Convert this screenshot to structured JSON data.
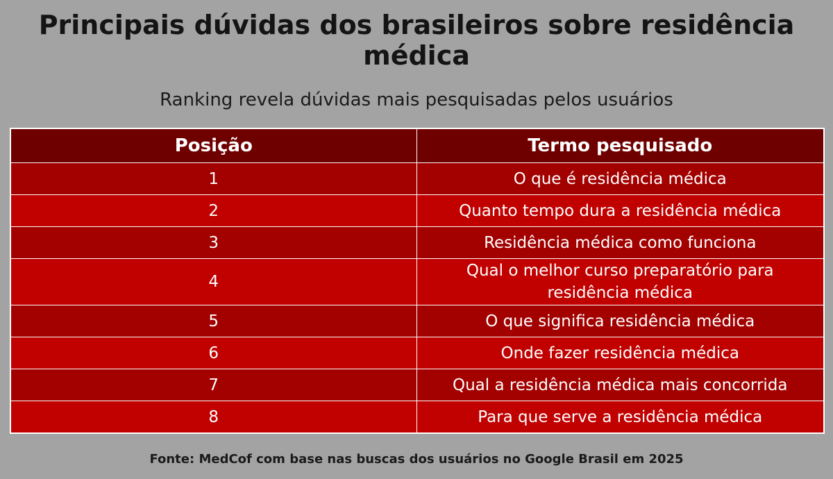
{
  "title": "Principais dúvidas dos brasileiros sobre residência médica",
  "subtitle": "Ranking revela dúvidas mais pesquisadas pelos usuários",
  "table": {
    "headers": [
      "Posição",
      "Termo pesquisado"
    ],
    "rows": [
      {
        "position": "1",
        "term": "O que é residência médica"
      },
      {
        "position": "2",
        "term": "Quanto tempo dura a residência médica"
      },
      {
        "position": "3",
        "term": "Residência médica como funciona"
      },
      {
        "position": "4",
        "term": "Qual o melhor curso preparatório para residência médica"
      },
      {
        "position": "5",
        "term": "O que significa residência médica"
      },
      {
        "position": "6",
        "term": "Onde fazer residência médica"
      },
      {
        "position": "7",
        "term": "Qual a residência médica mais concorrida"
      },
      {
        "position": "8",
        "term": "Para que serve a residência médica"
      }
    ]
  },
  "source": "Fonte: MedCof com base nas buscas dos usuários no Google Brasil em 2025",
  "colors": {
    "background": "#a3a3a3",
    "header": "#6f0000",
    "row_dark": "#a30000",
    "row_light": "#c10000",
    "text_light": "#ffffff"
  }
}
